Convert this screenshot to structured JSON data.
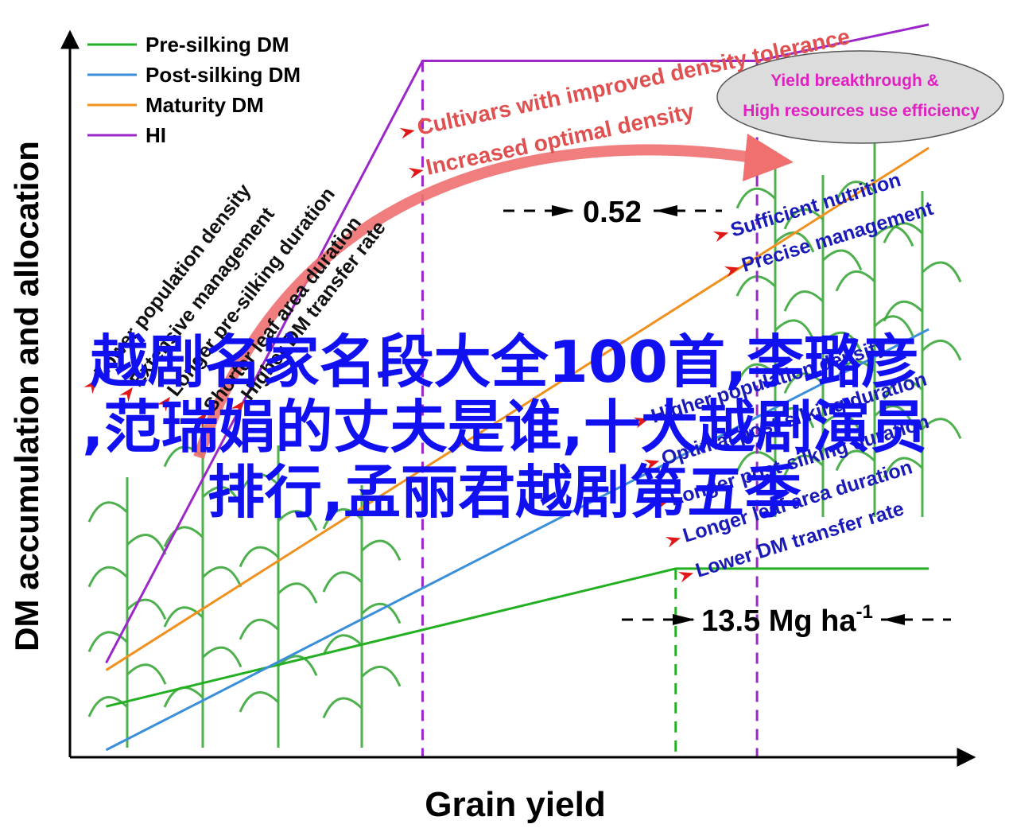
{
  "colors": {
    "pre_silking": "#22b022",
    "post_silking": "#3a8fd8",
    "maturity": "#f0901e",
    "hi": "#9b27c9",
    "axis": "#000000",
    "left_annotations": "#111111",
    "right_annotations": "#1a1ab8",
    "top_annotations": "#e05050",
    "ellipse_fill": "#dcdcdc",
    "ellipse_text": "#e020c0",
    "overlay_text": "#1010f0",
    "maize": "#3aa83a"
  },
  "chart_data": {
    "type": "line",
    "xlabel": "Grain yield",
    "ylabel": "DM accumulation and allocation",
    "xlim": [
      0,
      100
    ],
    "ylim": [
      0,
      100
    ],
    "series": [
      {
        "name": "Pre-silking DM",
        "color_key": "pre_silking",
        "x": [
          4,
          67,
          95
        ],
        "y": [
          7,
          26,
          26
        ]
      },
      {
        "name": "Post-silking DM",
        "color_key": "post_silking",
        "x": [
          4,
          95
        ],
        "y": [
          1,
          59
        ]
      },
      {
        "name": "Maturity DM",
        "color_key": "maturity",
        "x": [
          4,
          95
        ],
        "y": [
          12,
          84
        ]
      },
      {
        "name": "HI",
        "color_key": "hi",
        "x": [
          4,
          39,
          76,
          95
        ],
        "y": [
          13,
          96,
          96,
          101
        ]
      }
    ],
    "reference_lines": [
      {
        "x": 39,
        "color_key": "hi"
      },
      {
        "x": 76,
        "color_key": "hi"
      },
      {
        "x": 67,
        "color_key": "pre_silking"
      }
    ],
    "value_labels": {
      "hi_plateau": "0.52",
      "yield_value": "13.5 Mg ha",
      "yield_unit_exponent": "-1"
    },
    "left_annotations": [
      "Lower population density",
      "Extensive management",
      "Longer pre-silking duration",
      "Shorter leaf area duration",
      "Higher DM transfer rate"
    ],
    "right_annotations_top": [
      "Sufficient nutrition",
      "Precise management"
    ],
    "right_annotations_bottom": [
      "Higher population density",
      "Optimal post-silking duration",
      "Longer post-silking duration",
      "Longer leaf area duration",
      "Lower DM transfer rate"
    ],
    "top_annotations": [
      "Cultivars with improved density tolerance",
      "Increased optimal density"
    ],
    "ellipse_text": [
      "Yield breakthrough &",
      "High resources use efficiency"
    ]
  },
  "overlay": {
    "line1": "越剧名家名段大全100首,李璐彦",
    "line2": ",范瑞娟的丈夫是谁,十大越剧演员",
    "line3": "排行,孟丽君越剧第五季"
  }
}
